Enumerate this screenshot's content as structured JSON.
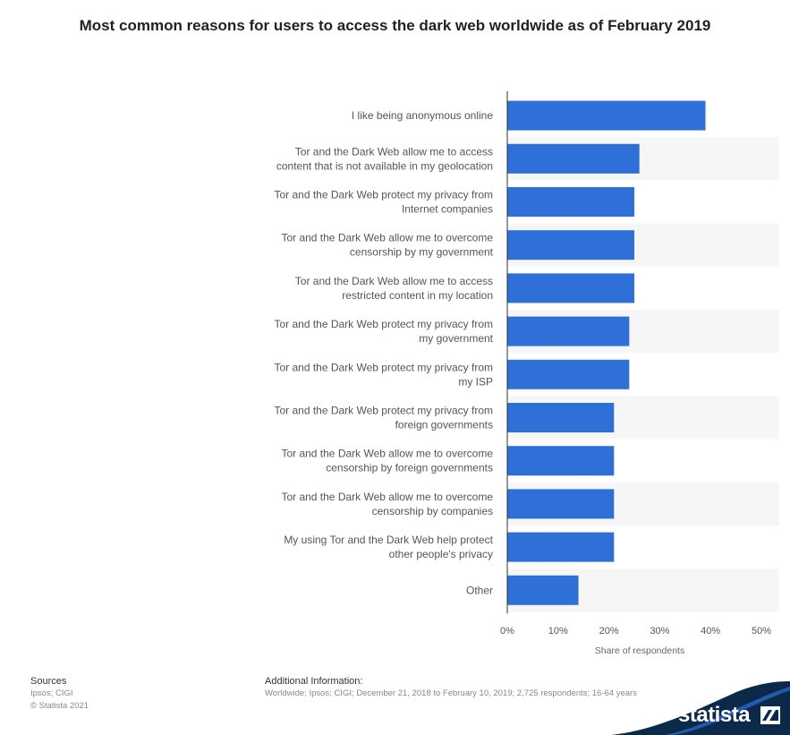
{
  "chart_data": {
    "type": "bar",
    "orientation": "horizontal",
    "title": "Most common reasons for users to access the dark web worldwide as of February 2019",
    "categories": [
      [
        "I like being anonymous online"
      ],
      [
        "Tor and the Dark Web allow me to access",
        "content that is not available in my geolocation"
      ],
      [
        "Tor and the Dark Web protect my privacy from",
        "Internet companies"
      ],
      [
        "Tor and the Dark Web allow me to overcome",
        "censorship by my government"
      ],
      [
        "Tor and the Dark Web allow me to access",
        "restricted content in my location"
      ],
      [
        "Tor and the Dark Web protect my privacy from",
        "my government"
      ],
      [
        "Tor and the Dark Web protect my privacy from",
        "my ISP"
      ],
      [
        "Tor and the Dark Web protect my privacy from",
        "foreign governments"
      ],
      [
        "Tor and the Dark Web allow me to overcome",
        "censorship by foreign governments"
      ],
      [
        "Tor and the Dark Web allow me to overcome",
        "censorship by companies"
      ],
      [
        "My using Tor and the Dark Web help protect",
        "other people's privacy"
      ],
      [
        "Other"
      ]
    ],
    "values": [
      39,
      26,
      25,
      25,
      25,
      24,
      24,
      21,
      21,
      21,
      21,
      14
    ],
    "xlabel": "Share of respondents",
    "xlim": [
      0,
      50
    ],
    "ticks": [
      "0%",
      "10%",
      "20%",
      "30%",
      "40%",
      "50%"
    ],
    "bar_color": "#2f6fd8",
    "band_color": "#f6f6f6"
  },
  "footer": {
    "sources_title": "Sources",
    "sources_lines": [
      "Ipsos; CIGI",
      "© Statista 2021"
    ],
    "additional_title": "Additional Information:",
    "additional_text": "Worldwide; Ipsos; CIGI; December 21, 2018 to February 10, 2019; 2,725 respondents; 16-64 years"
  },
  "brand": {
    "name": "statista",
    "color": "#0b2a4a"
  }
}
